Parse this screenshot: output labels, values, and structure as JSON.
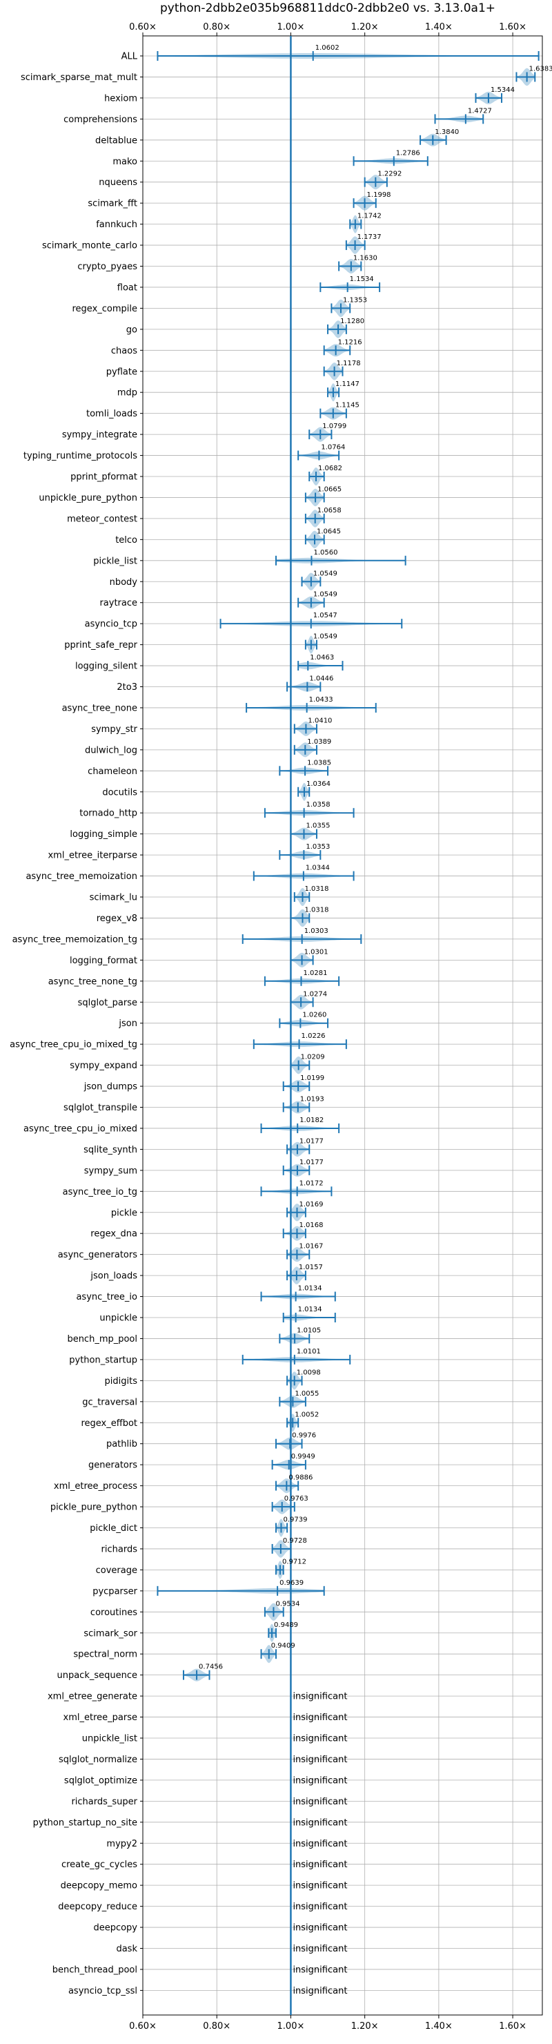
{
  "chart_data": {
    "type": "violin",
    "title": "python-2dbb2e035b968811ddc0-2dbb2e0 vs. 3.13.0a1+",
    "xlim": [
      0.6,
      1.68
    ],
    "xticks": [
      0.6,
      0.8,
      1.0,
      1.2,
      1.4,
      1.6
    ],
    "xtick_labels": [
      "0.60×",
      "0.80×",
      "1.00×",
      "1.20×",
      "1.40×",
      "1.60×"
    ],
    "reference_line": 1.0,
    "grid": true,
    "series_color": "#1f77b4",
    "insignificant_label": "insignificant",
    "benchmarks": [
      {
        "name": "ALL",
        "median": 1.0602,
        "label": "1.0602",
        "min": 0.64,
        "max": 1.67
      },
      {
        "name": "scimark_sparse_mat_mult",
        "median": 1.6383,
        "label": "1.6383",
        "min": 1.61,
        "max": 1.66
      },
      {
        "name": "hexiom",
        "median": 1.5344,
        "label": "1.5344",
        "min": 1.5,
        "max": 1.57
      },
      {
        "name": "comprehensions",
        "median": 1.4727,
        "label": "1.4727",
        "min": 1.39,
        "max": 1.52
      },
      {
        "name": "deltablue",
        "median": 1.384,
        "label": "1.3840",
        "min": 1.35,
        "max": 1.42
      },
      {
        "name": "mako",
        "median": 1.2786,
        "label": "1.2786",
        "min": 1.17,
        "max": 1.37
      },
      {
        "name": "nqueens",
        "median": 1.2292,
        "label": "1.2292",
        "min": 1.2,
        "max": 1.26
      },
      {
        "name": "scimark_fft",
        "median": 1.1998,
        "label": "1.1998",
        "min": 1.17,
        "max": 1.23
      },
      {
        "name": "fannkuch",
        "median": 1.1742,
        "label": "1.1742",
        "min": 1.16,
        "max": 1.19
      },
      {
        "name": "scimark_monte_carlo",
        "median": 1.1737,
        "label": "1.1737",
        "min": 1.15,
        "max": 1.2
      },
      {
        "name": "crypto_pyaes",
        "median": 1.163,
        "label": "1.1630",
        "min": 1.13,
        "max": 1.19
      },
      {
        "name": "float",
        "median": 1.1534,
        "label": "1.1534",
        "min": 1.08,
        "max": 1.24
      },
      {
        "name": "regex_compile",
        "median": 1.1353,
        "label": "1.1353",
        "min": 1.11,
        "max": 1.16
      },
      {
        "name": "go",
        "median": 1.128,
        "label": "1.1280",
        "min": 1.1,
        "max": 1.15
      },
      {
        "name": "chaos",
        "median": 1.1216,
        "label": "1.1216",
        "min": 1.09,
        "max": 1.16
      },
      {
        "name": "pyflate",
        "median": 1.1178,
        "label": "1.1178",
        "min": 1.09,
        "max": 1.14
      },
      {
        "name": "mdp",
        "median": 1.1147,
        "label": "1.1147",
        "min": 1.1,
        "max": 1.13
      },
      {
        "name": "tomli_loads",
        "median": 1.1145,
        "label": "1.1145",
        "min": 1.08,
        "max": 1.15
      },
      {
        "name": "sympy_integrate",
        "median": 1.0799,
        "label": "1.0799",
        "min": 1.05,
        "max": 1.11
      },
      {
        "name": "typing_runtime_protocols",
        "median": 1.0764,
        "label": "1.0764",
        "min": 1.02,
        "max": 1.13
      },
      {
        "name": "pprint_pformat",
        "median": 1.0682,
        "label": "1.0682",
        "min": 1.05,
        "max": 1.09
      },
      {
        "name": "unpickle_pure_python",
        "median": 1.0665,
        "label": "1.0665",
        "min": 1.04,
        "max": 1.09
      },
      {
        "name": "meteor_contest",
        "median": 1.0658,
        "label": "1.0658",
        "min": 1.04,
        "max": 1.09
      },
      {
        "name": "telco",
        "median": 1.0645,
        "label": "1.0645",
        "min": 1.04,
        "max": 1.09
      },
      {
        "name": "pickle_list",
        "median": 1.056,
        "label": "1.0560",
        "min": 0.96,
        "max": 1.31
      },
      {
        "name": "nbody",
        "median": 1.0549,
        "label": "1.0549",
        "min": 1.03,
        "max": 1.08
      },
      {
        "name": "raytrace",
        "median": 1.0549,
        "label": "1.0549",
        "min": 1.02,
        "max": 1.09
      },
      {
        "name": "asyncio_tcp",
        "median": 1.0547,
        "label": "1.0547",
        "min": 0.81,
        "max": 1.3
      },
      {
        "name": "pprint_safe_repr",
        "median": 1.0549,
        "label": "1.0549",
        "min": 1.04,
        "max": 1.07
      },
      {
        "name": "logging_silent",
        "median": 1.0463,
        "label": "1.0463",
        "min": 1.02,
        "max": 1.14
      },
      {
        "name": "2to3",
        "median": 1.0446,
        "label": "1.0446",
        "min": 0.99,
        "max": 1.08
      },
      {
        "name": "async_tree_none",
        "median": 1.0433,
        "label": "1.0433",
        "min": 0.88,
        "max": 1.23
      },
      {
        "name": "sympy_str",
        "median": 1.041,
        "label": "1.0410",
        "min": 1.01,
        "max": 1.07
      },
      {
        "name": "dulwich_log",
        "median": 1.0389,
        "label": "1.0389",
        "min": 1.01,
        "max": 1.07
      },
      {
        "name": "chameleon",
        "median": 1.0385,
        "label": "1.0385",
        "min": 0.97,
        "max": 1.1
      },
      {
        "name": "docutils",
        "median": 1.0364,
        "label": "1.0364",
        "min": 1.02,
        "max": 1.05
      },
      {
        "name": "tornado_http",
        "median": 1.0358,
        "label": "1.0358",
        "min": 0.93,
        "max": 1.17
      },
      {
        "name": "logging_simple",
        "median": 1.0355,
        "label": "1.0355",
        "min": 1.0,
        "max": 1.07
      },
      {
        "name": "xml_etree_iterparse",
        "median": 1.0353,
        "label": "1.0353",
        "min": 0.97,
        "max": 1.08
      },
      {
        "name": "async_tree_memoization",
        "median": 1.0344,
        "label": "1.0344",
        "min": 0.9,
        "max": 1.17
      },
      {
        "name": "scimark_lu",
        "median": 1.0318,
        "label": "1.0318",
        "min": 1.01,
        "max": 1.05
      },
      {
        "name": "regex_v8",
        "median": 1.0318,
        "label": "1.0318",
        "min": 1.0,
        "max": 1.05
      },
      {
        "name": "async_tree_memoization_tg",
        "median": 1.0303,
        "label": "1.0303",
        "min": 0.87,
        "max": 1.19
      },
      {
        "name": "logging_format",
        "median": 1.0301,
        "label": "1.0301",
        "min": 1.0,
        "max": 1.06
      },
      {
        "name": "async_tree_none_tg",
        "median": 1.0281,
        "label": "1.0281",
        "min": 0.93,
        "max": 1.13
      },
      {
        "name": "sqlglot_parse",
        "median": 1.0274,
        "label": "1.0274",
        "min": 1.0,
        "max": 1.06
      },
      {
        "name": "json",
        "median": 1.026,
        "label": "1.0260",
        "min": 0.97,
        "max": 1.1
      },
      {
        "name": "async_tree_cpu_io_mixed_tg",
        "median": 1.0226,
        "label": "1.0226",
        "min": 0.9,
        "max": 1.15
      },
      {
        "name": "sympy_expand",
        "median": 1.0209,
        "label": "1.0209",
        "min": 1.0,
        "max": 1.05
      },
      {
        "name": "json_dumps",
        "median": 1.0199,
        "label": "1.0199",
        "min": 0.98,
        "max": 1.05
      },
      {
        "name": "sqlglot_transpile",
        "median": 1.0193,
        "label": "1.0193",
        "min": 0.98,
        "max": 1.05
      },
      {
        "name": "async_tree_cpu_io_mixed",
        "median": 1.0182,
        "label": "1.0182",
        "min": 0.92,
        "max": 1.13
      },
      {
        "name": "sqlite_synth",
        "median": 1.0177,
        "label": "1.0177",
        "min": 0.99,
        "max": 1.05
      },
      {
        "name": "sympy_sum",
        "median": 1.0177,
        "label": "1.0177",
        "min": 0.98,
        "max": 1.05
      },
      {
        "name": "async_tree_io_tg",
        "median": 1.0172,
        "label": "1.0172",
        "min": 0.92,
        "max": 1.11
      },
      {
        "name": "pickle",
        "median": 1.0169,
        "label": "1.0169",
        "min": 0.99,
        "max": 1.04
      },
      {
        "name": "regex_dna",
        "median": 1.0168,
        "label": "1.0168",
        "min": 0.98,
        "max": 1.04
      },
      {
        "name": "async_generators",
        "median": 1.0167,
        "label": "1.0167",
        "min": 0.99,
        "max": 1.05
      },
      {
        "name": "json_loads",
        "median": 1.0157,
        "label": "1.0157",
        "min": 0.99,
        "max": 1.04
      },
      {
        "name": "async_tree_io",
        "median": 1.0134,
        "label": "1.0134",
        "min": 0.92,
        "max": 1.12
      },
      {
        "name": "unpickle",
        "median": 1.0134,
        "label": "1.0134",
        "min": 0.98,
        "max": 1.12
      },
      {
        "name": "bench_mp_pool",
        "median": 1.0105,
        "label": "1.0105",
        "min": 0.97,
        "max": 1.05
      },
      {
        "name": "python_startup",
        "median": 1.0101,
        "label": "1.0101",
        "min": 0.87,
        "max": 1.16
      },
      {
        "name": "pidigits",
        "median": 1.0098,
        "label": "1.0098",
        "min": 0.99,
        "max": 1.03
      },
      {
        "name": "gc_traversal",
        "median": 1.0055,
        "label": "1.0055",
        "min": 0.97,
        "max": 1.04
      },
      {
        "name": "regex_effbot",
        "median": 1.0052,
        "label": "1.0052",
        "min": 0.99,
        "max": 1.02
      },
      {
        "name": "pathlib",
        "median": 0.9976,
        "label": "0.9976",
        "min": 0.96,
        "max": 1.03
      },
      {
        "name": "generators",
        "median": 0.9949,
        "label": "0.9949",
        "min": 0.95,
        "max": 1.04
      },
      {
        "name": "xml_etree_process",
        "median": 0.9886,
        "label": "0.9886",
        "min": 0.96,
        "max": 1.02
      },
      {
        "name": "pickle_pure_python",
        "median": 0.9763,
        "label": "0.9763",
        "min": 0.95,
        "max": 1.01
      },
      {
        "name": "pickle_dict",
        "median": 0.9739,
        "label": "0.9739",
        "min": 0.96,
        "max": 0.99
      },
      {
        "name": "richards",
        "median": 0.9728,
        "label": "0.9728",
        "min": 0.95,
        "max": 1.0
      },
      {
        "name": "coverage",
        "median": 0.9712,
        "label": "0.9712",
        "min": 0.96,
        "max": 0.98
      },
      {
        "name": "pycparser",
        "median": 0.9639,
        "label": "0.9639",
        "min": 0.64,
        "max": 1.09
      },
      {
        "name": "coroutines",
        "median": 0.9534,
        "label": "0.9534",
        "min": 0.93,
        "max": 0.98
      },
      {
        "name": "scimark_sor",
        "median": 0.9489,
        "label": "0.9489",
        "min": 0.94,
        "max": 0.96
      },
      {
        "name": "spectral_norm",
        "median": 0.9409,
        "label": "0.9409",
        "min": 0.92,
        "max": 0.96
      },
      {
        "name": "unpack_sequence",
        "median": 0.7456,
        "label": "0.7456",
        "min": 0.71,
        "max": 0.78
      },
      {
        "name": "xml_etree_generate",
        "insignificant": true
      },
      {
        "name": "xml_etree_parse",
        "insignificant": true
      },
      {
        "name": "unpickle_list",
        "insignificant": true
      },
      {
        "name": "sqlglot_normalize",
        "insignificant": true
      },
      {
        "name": "sqlglot_optimize",
        "insignificant": true
      },
      {
        "name": "richards_super",
        "insignificant": true
      },
      {
        "name": "python_startup_no_site",
        "insignificant": true
      },
      {
        "name": "mypy2",
        "insignificant": true
      },
      {
        "name": "create_gc_cycles",
        "insignificant": true
      },
      {
        "name": "deepcopy_memo",
        "insignificant": true
      },
      {
        "name": "deepcopy_reduce",
        "insignificant": true
      },
      {
        "name": "deepcopy",
        "insignificant": true
      },
      {
        "name": "dask",
        "insignificant": true
      },
      {
        "name": "bench_thread_pool",
        "insignificant": true
      },
      {
        "name": "asyncio_tcp_ssl",
        "insignificant": true
      }
    ]
  }
}
